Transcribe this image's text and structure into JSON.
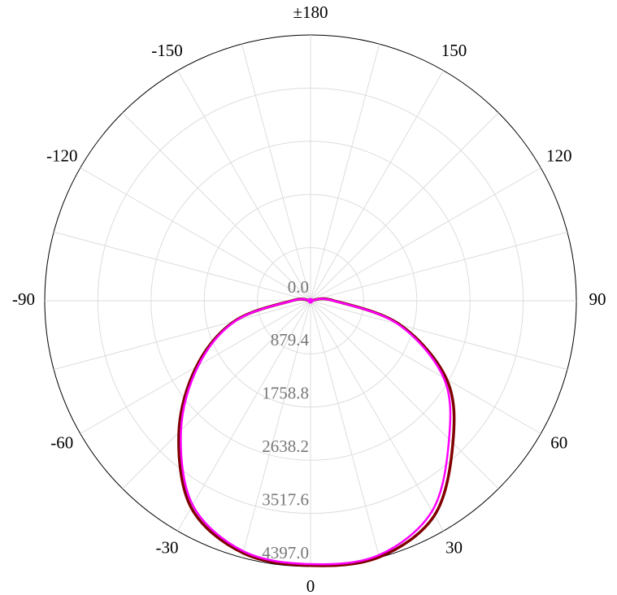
{
  "chart_data": {
    "type": "polar",
    "x": [
      -180,
      -165,
      -150,
      -135,
      -120,
      -105,
      -90,
      -75,
      -60,
      -45,
      -30,
      -15,
      0,
      15,
      30,
      45,
      60,
      75,
      90,
      105,
      120,
      135,
      150,
      165,
      180
    ],
    "series": [
      {
        "color": "#800000",
        "values": [
          0,
          0,
          0,
          0,
          0,
          40,
          310,
          1300,
          2180,
          3080,
          3950,
          4320,
          4380,
          4390,
          4100,
          3330,
          2600,
          1530,
          390,
          40,
          0,
          0,
          0,
          0,
          0
        ]
      },
      {
        "color": "#ff00ff",
        "values": [
          0,
          0,
          0,
          0,
          0,
          40,
          300,
          1280,
          2140,
          3030,
          3900,
          4290,
          4357,
          4357,
          4020,
          3240,
          2540,
          1500,
          380,
          40,
          0,
          0,
          0,
          0,
          0
        ]
      }
    ],
    "xticks": [
      0,
      30,
      60,
      90,
      120,
      150,
      {
        "value": 180,
        "label": "±180"
      },
      -150,
      -120,
      -90,
      -60,
      -30
    ],
    "xgrid": [
      -165,
      -135,
      -105,
      -75,
      -45,
      -15,
      15,
      45,
      75,
      105,
      135,
      165
    ],
    "rlim": [
      0,
      4397
    ],
    "rticks": [
      {
        "value": 0,
        "label": "0.0"
      },
      879.4,
      1758.8,
      2638.2,
      3517.6,
      {
        "value": 4397,
        "label": "4397.0"
      }
    ],
    "grid": true
  }
}
